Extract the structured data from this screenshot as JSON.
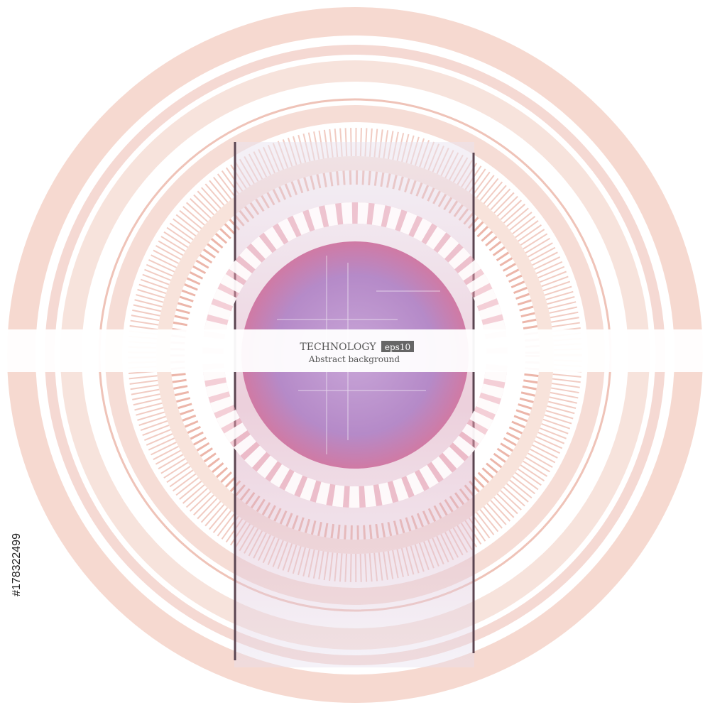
{
  "banner": {
    "title": "TECHNOLOGY",
    "badge": "eps10",
    "subtitle": "Abstract background"
  },
  "stock_id": "#178322499"
}
